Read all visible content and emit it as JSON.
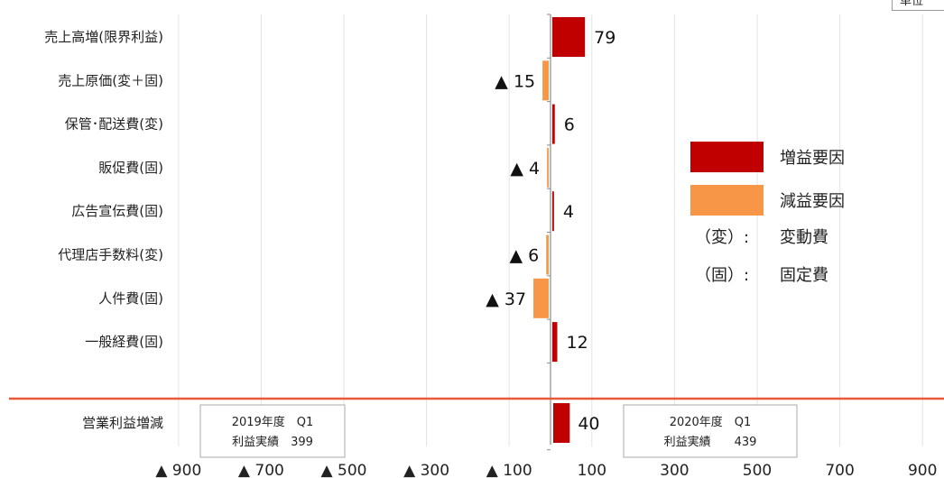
{
  "unit_label": "単位",
  "chart_data": {
    "type": "bar",
    "orientation": "horizontal",
    "categories": [
      "売上高増(限界利益)",
      "売上原価(変＋固)",
      "保管･配送費(変)",
      "販促費(固)",
      "広告宣伝費(固)",
      "代理店手数料(変)",
      "人件費(固)",
      "一般経費(固)"
    ],
    "values": [
      79,
      -15,
      6,
      -4,
      4,
      -6,
      -37,
      12
    ],
    "value_labels": [
      "79",
      "▲ 15",
      "6",
      "▲ 4",
      "4",
      "▲ 6",
      "▲ 37",
      "12"
    ],
    "total": {
      "label": "営業利益増減",
      "value": 40,
      "value_label": "40"
    },
    "xlim": [
      -900,
      900
    ],
    "xticks": [
      -900,
      -700,
      -500,
      -300,
      -100,
      100,
      300,
      500,
      700,
      900
    ],
    "xtick_labels": [
      "▲ 900",
      "▲ 700",
      "▲ 500",
      "▲ 300",
      "▲ 100",
      "100",
      "300",
      "500",
      "700",
      "900"
    ],
    "grid": true,
    "legend": [
      {
        "label": "増益要因",
        "color": "#c00000"
      },
      {
        "label": "減益要因",
        "color": "#f79646"
      }
    ],
    "legend_notes": [
      {
        "key": "（変）:",
        "text": "変動費"
      },
      {
        "key": "（固）:",
        "text": "固定費"
      }
    ],
    "annotations": [
      {
        "line1": "2019年度　Q1",
        "line2": "利益実績　399"
      },
      {
        "line1": "2020年度　Q1",
        "line2": "利益実績　　439"
      }
    ],
    "colors": {
      "increase": "#c00000",
      "decrease": "#f79646",
      "separator": "#e8593a"
    }
  }
}
